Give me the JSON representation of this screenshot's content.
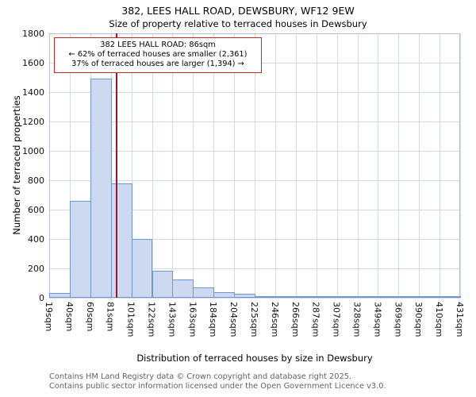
{
  "chart_data": {
    "type": "bar",
    "title": "382, LEES HALL ROAD, DEWSBURY, WF12 9EW",
    "subtitle": "Size of property relative to terraced houses in Dewsbury",
    "xlabel": "Distribution of terraced houses by size in Dewsbury",
    "ylabel": "Number of terraced properties",
    "categories": [
      "19sqm",
      "40sqm",
      "60sqm",
      "81sqm",
      "101sqm",
      "122sqm",
      "143sqm",
      "163sqm",
      "184sqm",
      "204sqm",
      "225sqm",
      "246sqm",
      "266sqm",
      "287sqm",
      "307sqm",
      "328sqm",
      "349sqm",
      "369sqm",
      "390sqm",
      "410sqm",
      "431sqm"
    ],
    "values": [
      30,
      660,
      1490,
      780,
      400,
      185,
      125,
      70,
      40,
      25,
      12,
      8,
      6,
      5,
      4,
      3,
      2,
      2,
      1,
      1
    ],
    "ylim": [
      0,
      1800
    ],
    "yticks": [
      0,
      200,
      400,
      600,
      800,
      1000,
      1200,
      1400,
      1600,
      1800
    ],
    "x_min": 19,
    "x_max": 431,
    "grid": true,
    "legend_position": "none",
    "bar_fill": "#cdd9f0",
    "bar_border": "#6e96cf",
    "grid_color": "#d2daea",
    "marker_color": "#aa1122"
  },
  "marker": {
    "value_sqm": 86,
    "label": "86sqm"
  },
  "annotation": {
    "line1": "382 LEES HALL ROAD: 86sqm",
    "line2": "← 62% of terraced houses are smaller (2,361)",
    "line3": "37% of terraced houses are larger (1,394) →"
  },
  "footer": {
    "line1": "Contains HM Land Registry data © Crown copyright and database right 2025.",
    "line2": "Contains public sector information licensed under the Open Government Licence v3.0."
  }
}
